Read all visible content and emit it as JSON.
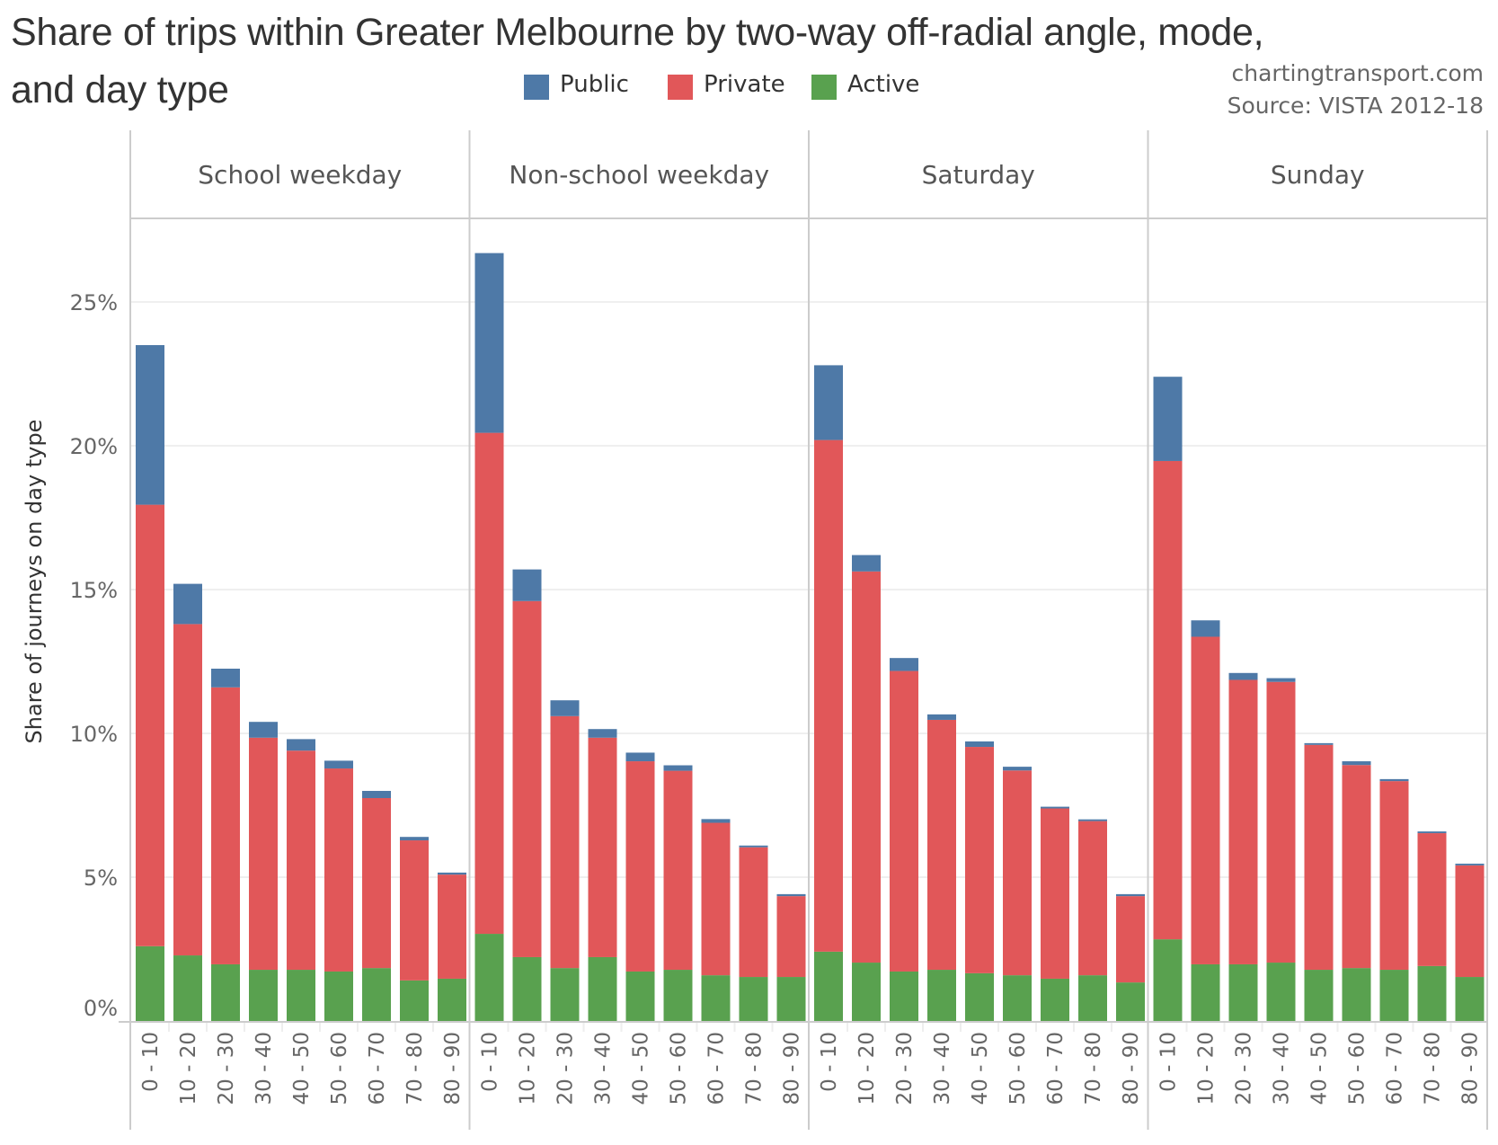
{
  "header": {
    "title_line1": "Share of trips within Greater Melbourne by two-way off-radial angle, mode,",
    "title_line2": "and day type",
    "credit_site": "chartingtransport.com",
    "credit_source": "Source: VISTA 2012-18"
  },
  "legend": [
    {
      "label": "Public",
      "color": "#4e79a7"
    },
    {
      "label": "Private",
      "color": "#e15759"
    },
    {
      "label": "Active",
      "color": "#59a14f"
    }
  ],
  "chart_data": {
    "type": "bar",
    "stacked": true,
    "title": "Share of trips within Greater Melbourne by two-way off-radial angle, mode, and day type",
    "xlabel": "",
    "ylabel": "Share of journeys on day type",
    "ylim": [
      0,
      28.5
    ],
    "yticks": [
      0,
      5,
      10,
      15,
      20,
      25
    ],
    "ytick_labels": [
      "0%",
      "5%",
      "10%",
      "15%",
      "20%",
      "25%"
    ],
    "grid": true,
    "legend_position": "top",
    "categories": [
      "0 - 10",
      "10 - 20",
      "20 - 30",
      "30 - 40",
      "40 - 50",
      "50 - 60",
      "60 - 70",
      "70 - 80",
      "80 - 90"
    ],
    "stack_order": [
      "Active",
      "Private",
      "Public"
    ],
    "panels": [
      {
        "name": "School weekday",
        "series": [
          {
            "name": "Active",
            "values": [
              2.6,
              2.28,
              1.97,
              1.78,
              1.78,
              1.72,
              1.84,
              1.41,
              1.47
            ]
          },
          {
            "name": "Private",
            "values": [
              15.35,
              11.52,
              9.63,
              8.07,
              7.62,
              7.06,
              5.91,
              4.87,
              3.62
            ]
          },
          {
            "name": "Public",
            "values": [
              5.55,
              1.4,
              0.65,
              0.55,
              0.4,
              0.27,
              0.25,
              0.12,
              0.07
            ]
          }
        ]
      },
      {
        "name": "Non-school weekday",
        "series": [
          {
            "name": "Active",
            "values": [
              3.03,
              2.22,
              1.84,
              2.22,
              1.72,
              1.78,
              1.59,
              1.53,
              1.53
            ]
          },
          {
            "name": "Private",
            "values": [
              17.42,
              12.38,
              8.76,
              7.63,
              7.31,
              6.92,
              5.3,
              4.51,
              2.81
            ]
          },
          {
            "name": "Public",
            "values": [
              6.25,
              1.1,
              0.55,
              0.3,
              0.3,
              0.19,
              0.13,
              0.06,
              0.07
            ]
          }
        ]
      },
      {
        "name": "Saturday",
        "series": [
          {
            "name": "Active",
            "values": [
              2.41,
              2.03,
              1.72,
              1.78,
              1.66,
              1.59,
              1.47,
              1.59,
              1.34
            ]
          },
          {
            "name": "Private",
            "values": [
              17.79,
              13.6,
              10.45,
              8.69,
              7.87,
              7.12,
              5.92,
              5.36,
              3.0
            ]
          },
          {
            "name": "Public",
            "values": [
              2.6,
              0.57,
              0.45,
              0.19,
              0.19,
              0.13,
              0.06,
              0.06,
              0.07
            ]
          }
        ]
      },
      {
        "name": "Sunday",
        "series": [
          {
            "name": "Active",
            "values": [
              2.84,
              1.97,
              1.97,
              2.03,
              1.78,
              1.84,
              1.78,
              1.91,
              1.53
            ]
          },
          {
            "name": "Private",
            "values": [
              16.63,
              11.39,
              9.89,
              9.76,
              7.82,
              7.06,
              6.56,
              4.62,
              3.88
            ]
          },
          {
            "name": "Public",
            "values": [
              2.93,
              0.57,
              0.24,
              0.13,
              0.06,
              0.13,
              0.07,
              0.06,
              0.06
            ]
          }
        ]
      }
    ]
  }
}
